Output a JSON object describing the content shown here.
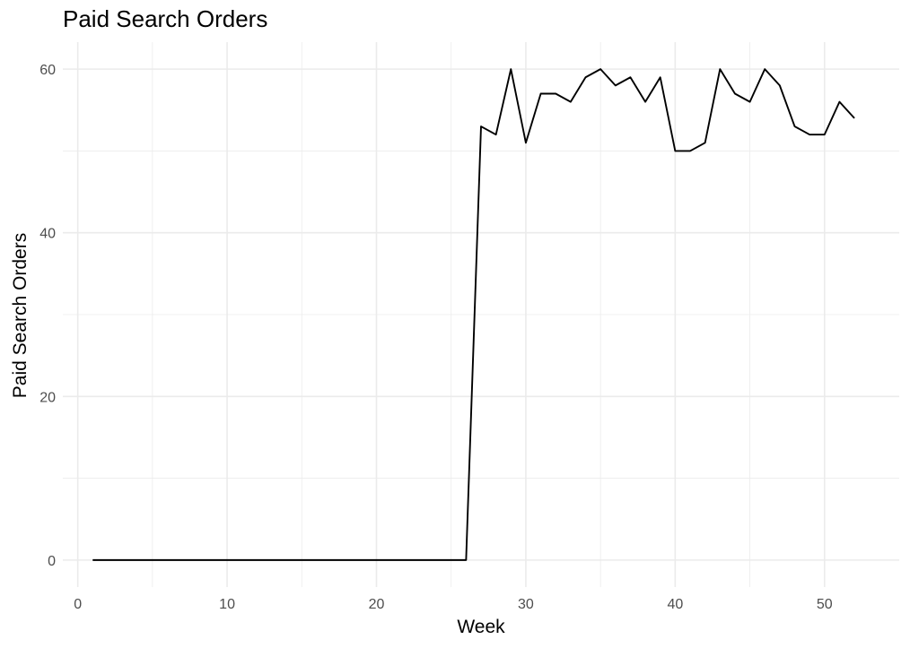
{
  "chart_data": {
    "type": "line",
    "title": "Paid Search Orders",
    "xlabel": "Week",
    "ylabel": "Paid Search Orders",
    "xlim": [
      -1,
      55
    ],
    "ylim": [
      -3.3,
      63.3
    ],
    "x_ticks": [
      0,
      10,
      20,
      30,
      40,
      50
    ],
    "y_ticks": [
      0,
      20,
      40,
      60
    ],
    "grid": true,
    "legend": "none",
    "line_color": "#000000",
    "grid_color": "#ebebeb",
    "series": [
      {
        "x": [
          1,
          2,
          3,
          4,
          5,
          6,
          7,
          8,
          9,
          10,
          11,
          12,
          13,
          14,
          15,
          16,
          17,
          18,
          19,
          20,
          21,
          22,
          23,
          24,
          25,
          26,
          27,
          28,
          29,
          30,
          31,
          32,
          33,
          34,
          35,
          36,
          37,
          38,
          39,
          40,
          41,
          42,
          43,
          44,
          45,
          46,
          47,
          48,
          49,
          50,
          51,
          52
        ],
        "values": [
          0,
          0,
          0,
          0,
          0,
          0,
          0,
          0,
          0,
          0,
          0,
          0,
          0,
          0,
          0,
          0,
          0,
          0,
          0,
          0,
          0,
          0,
          0,
          0,
          0,
          0,
          53,
          52,
          60,
          51,
          57,
          57,
          56,
          59,
          60,
          58,
          59,
          56,
          59,
          50,
          50,
          51,
          60,
          57,
          56,
          60,
          58,
          53,
          52,
          52,
          56,
          54
        ]
      }
    ]
  }
}
